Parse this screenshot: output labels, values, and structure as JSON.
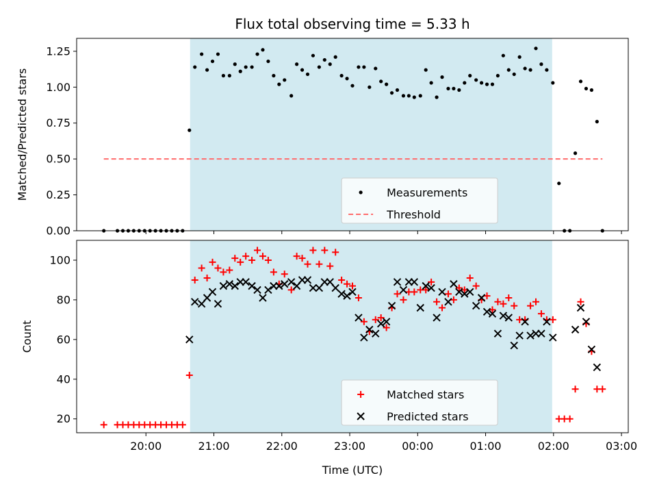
{
  "title": "Flux total observing time = 5.33 h",
  "shading_color": "#add8e6",
  "x_axis": {
    "label": "Time (UTC)",
    "range_hours": [
      18.98,
      27.1
    ],
    "ticks": [
      20,
      21,
      22,
      23,
      24,
      25,
      26,
      27
    ],
    "tick_labels": [
      "20:00",
      "21:00",
      "22:00",
      "23:00",
      "00:00",
      "01:00",
      "02:00",
      "03:00"
    ]
  },
  "chart_data": [
    {
      "type": "scatter",
      "panel": "top",
      "xlabel": "",
      "ylabel": "Matched/Predicted stars",
      "ylim": [
        0,
        1.34
      ],
      "yticks": [
        0,
        0.25,
        0.5,
        0.75,
        1.0,
        1.25
      ],
      "ytick_labels": [
        "0.00",
        "0.25",
        "0.50",
        "0.75",
        "1.00",
        "1.25"
      ],
      "shaded_interval": [
        20.65,
        25.98
      ],
      "legend_position": "lower center",
      "series": [
        {
          "name": "Measurements",
          "color": "#000000",
          "marker": "dot",
          "points": [
            [
              19.38,
              0
            ],
            [
              19.58,
              0
            ],
            [
              19.66,
              0
            ],
            [
              19.74,
              0
            ],
            [
              19.82,
              0
            ],
            [
              19.9,
              0
            ],
            [
              19.98,
              0
            ],
            [
              20.06,
              0
            ],
            [
              20.14,
              0
            ],
            [
              20.22,
              0
            ],
            [
              20.3,
              0
            ],
            [
              20.38,
              0
            ],
            [
              20.46,
              0
            ],
            [
              20.54,
              0
            ],
            [
              20.64,
              0.7
            ],
            [
              20.72,
              1.14
            ],
            [
              20.82,
              1.23
            ],
            [
              20.9,
              1.12
            ],
            [
              20.98,
              1.18
            ],
            [
              21.06,
              1.23
            ],
            [
              21.14,
              1.08
            ],
            [
              21.23,
              1.08
            ],
            [
              21.31,
              1.16
            ],
            [
              21.39,
              1.11
            ],
            [
              21.47,
              1.14
            ],
            [
              21.56,
              1.14
            ],
            [
              21.64,
              1.23
            ],
            [
              21.72,
              1.26
            ],
            [
              21.8,
              1.18
            ],
            [
              21.88,
              1.08
            ],
            [
              21.96,
              1.02
            ],
            [
              22.04,
              1.05
            ],
            [
              22.14,
              0.94
            ],
            [
              22.22,
              1.16
            ],
            [
              22.3,
              1.12
            ],
            [
              22.38,
              1.09
            ],
            [
              22.46,
              1.22
            ],
            [
              22.55,
              1.14
            ],
            [
              22.63,
              1.19
            ],
            [
              22.71,
              1.16
            ],
            [
              22.79,
              1.21
            ],
            [
              22.88,
              1.08
            ],
            [
              22.96,
              1.06
            ],
            [
              23.04,
              1.01
            ],
            [
              23.13,
              1.14
            ],
            [
              23.21,
              1.14
            ],
            [
              23.29,
              1.0
            ],
            [
              23.38,
              1.13
            ],
            [
              23.46,
              1.04
            ],
            [
              23.54,
              1.02
            ],
            [
              23.62,
              0.96
            ],
            [
              23.7,
              0.98
            ],
            [
              23.79,
              0.94
            ],
            [
              23.87,
              0.94
            ],
            [
              23.95,
              0.93
            ],
            [
              24.04,
              0.94
            ],
            [
              24.12,
              1.12
            ],
            [
              24.2,
              1.03
            ],
            [
              24.28,
              0.93
            ],
            [
              24.36,
              1.07
            ],
            [
              24.45,
              0.99
            ],
            [
              24.53,
              0.99
            ],
            [
              24.61,
              0.98
            ],
            [
              24.69,
              1.03
            ],
            [
              24.77,
              1.08
            ],
            [
              24.86,
              1.05
            ],
            [
              24.94,
              1.03
            ],
            [
              25.02,
              1.02
            ],
            [
              25.1,
              1.02
            ],
            [
              25.18,
              1.08
            ],
            [
              25.26,
              1.22
            ],
            [
              25.34,
              1.12
            ],
            [
              25.42,
              1.09
            ],
            [
              25.5,
              1.21
            ],
            [
              25.58,
              1.13
            ],
            [
              25.66,
              1.12
            ],
            [
              25.74,
              1.27
            ],
            [
              25.82,
              1.16
            ],
            [
              25.9,
              1.12
            ],
            [
              25.99,
              1.03
            ],
            [
              26.08,
              0.33
            ],
            [
              26.16,
              0
            ],
            [
              26.24,
              0
            ],
            [
              26.32,
              0.54
            ],
            [
              26.4,
              1.04
            ],
            [
              26.48,
              0.99
            ],
            [
              26.56,
              0.98
            ],
            [
              26.64,
              0.76
            ],
            [
              26.72,
              0
            ]
          ]
        },
        {
          "name": "Threshold",
          "color": "#ff6b6b",
          "style": "dashed",
          "points": [
            [
              19.38,
              0.5
            ],
            [
              26.72,
              0.5
            ]
          ]
        }
      ]
    },
    {
      "type": "scatter",
      "panel": "bottom",
      "xlabel": "Time (UTC)",
      "ylabel": "Count",
      "ylim": [
        13,
        110
      ],
      "yticks": [
        20,
        40,
        60,
        80,
        100
      ],
      "ytick_labels": [
        "20",
        "40",
        "60",
        "80",
        "100"
      ],
      "shaded_interval": [
        20.65,
        25.98
      ],
      "legend_position": "lower center",
      "series": [
        {
          "name": "Matched stars",
          "color": "#ff0000",
          "marker": "plus",
          "points": [
            [
              19.38,
              17
            ],
            [
              19.58,
              17
            ],
            [
              19.66,
              17
            ],
            [
              19.74,
              17
            ],
            [
              19.82,
              17
            ],
            [
              19.9,
              17
            ],
            [
              19.98,
              17
            ],
            [
              20.06,
              17
            ],
            [
              20.14,
              17
            ],
            [
              20.22,
              17
            ],
            [
              20.3,
              17
            ],
            [
              20.38,
              17
            ],
            [
              20.46,
              17
            ],
            [
              20.54,
              17
            ],
            [
              20.64,
              42
            ],
            [
              20.72,
              90
            ],
            [
              20.82,
              96
            ],
            [
              20.9,
              91
            ],
            [
              20.98,
              99
            ],
            [
              21.06,
              96
            ],
            [
              21.14,
              94
            ],
            [
              21.23,
              95
            ],
            [
              21.31,
              101
            ],
            [
              21.39,
              99
            ],
            [
              21.47,
              102
            ],
            [
              21.56,
              100
            ],
            [
              21.64,
              105
            ],
            [
              21.72,
              102
            ],
            [
              21.8,
              100
            ],
            [
              21.88,
              94
            ],
            [
              21.96,
              88
            ],
            [
              22.04,
              93
            ],
            [
              22.14,
              85
            ],
            [
              22.22,
              102
            ],
            [
              22.3,
              101
            ],
            [
              22.38,
              98
            ],
            [
              22.46,
              105
            ],
            [
              22.55,
              98
            ],
            [
              22.63,
              105
            ],
            [
              22.71,
              97
            ],
            [
              22.79,
              104
            ],
            [
              22.88,
              90
            ],
            [
              22.96,
              88
            ],
            [
              23.04,
              87
            ],
            [
              23.13,
              81
            ],
            [
              23.21,
              69
            ],
            [
              23.29,
              64
            ],
            [
              23.38,
              70
            ],
            [
              23.46,
              71
            ],
            [
              23.54,
              66
            ],
            [
              23.62,
              76
            ],
            [
              23.7,
              83
            ],
            [
              23.79,
              80
            ],
            [
              23.87,
              84
            ],
            [
              23.95,
              84
            ],
            [
              24.04,
              85
            ],
            [
              24.12,
              85
            ],
            [
              24.2,
              89
            ],
            [
              24.28,
              79
            ],
            [
              24.36,
              76
            ],
            [
              24.45,
              83
            ],
            [
              24.53,
              80
            ],
            [
              24.61,
              86
            ],
            [
              24.69,
              85
            ],
            [
              24.77,
              91
            ],
            [
              24.86,
              87
            ],
            [
              24.94,
              80
            ],
            [
              25.02,
              82
            ],
            [
              25.1,
              75
            ],
            [
              25.18,
              79
            ],
            [
              25.26,
              78
            ],
            [
              25.34,
              81
            ],
            [
              25.42,
              77
            ],
            [
              25.5,
              70
            ],
            [
              25.58,
              70
            ],
            [
              25.66,
              77
            ],
            [
              25.74,
              79
            ],
            [
              25.82,
              73
            ],
            [
              25.9,
              70
            ],
            [
              25.99,
              70
            ],
            [
              26.08,
              20
            ],
            [
              26.16,
              20
            ],
            [
              26.24,
              20
            ],
            [
              26.32,
              35
            ],
            [
              26.4,
              79
            ],
            [
              26.48,
              68
            ],
            [
              26.56,
              54
            ],
            [
              26.64,
              35
            ],
            [
              26.72,
              35
            ]
          ]
        },
        {
          "name": "Predicted stars",
          "color": "#000000",
          "marker": "x",
          "points": [
            [
              20.64,
              60
            ],
            [
              20.72,
              79
            ],
            [
              20.82,
              78
            ],
            [
              20.9,
              81
            ],
            [
              20.98,
              84
            ],
            [
              21.06,
              78
            ],
            [
              21.14,
              87
            ],
            [
              21.23,
              88
            ],
            [
              21.31,
              87
            ],
            [
              21.39,
              89
            ],
            [
              21.47,
              89
            ],
            [
              21.56,
              87
            ],
            [
              21.64,
              85
            ],
            [
              21.72,
              81
            ],
            [
              21.8,
              85
            ],
            [
              21.88,
              87
            ],
            [
              21.96,
              87
            ],
            [
              22.04,
              88
            ],
            [
              22.14,
              89
            ],
            [
              22.22,
              87
            ],
            [
              22.3,
              90
            ],
            [
              22.38,
              90
            ],
            [
              22.46,
              86
            ],
            [
              22.55,
              86
            ],
            [
              22.63,
              89
            ],
            [
              22.71,
              89
            ],
            [
              22.79,
              86
            ],
            [
              22.88,
              83
            ],
            [
              22.96,
              82
            ],
            [
              23.04,
              84
            ],
            [
              23.13,
              71
            ],
            [
              23.21,
              61
            ],
            [
              23.29,
              65
            ],
            [
              23.38,
              63
            ],
            [
              23.46,
              68
            ],
            [
              23.54,
              69
            ],
            [
              23.62,
              77
            ],
            [
              23.7,
              89
            ],
            [
              23.79,
              85
            ],
            [
              23.87,
              89
            ],
            [
              23.95,
              89
            ],
            [
              24.04,
              76
            ],
            [
              24.12,
              87
            ],
            [
              24.2,
              86
            ],
            [
              24.28,
              71
            ],
            [
              24.36,
              84
            ],
            [
              24.45,
              79
            ],
            [
              24.53,
              88
            ],
            [
              24.61,
              84
            ],
            [
              24.69,
              83
            ],
            [
              24.77,
              84
            ],
            [
              24.86,
              77
            ],
            [
              24.94,
              81
            ],
            [
              25.02,
              74
            ],
            [
              25.1,
              73
            ],
            [
              25.18,
              63
            ],
            [
              25.26,
              72
            ],
            [
              25.34,
              71
            ],
            [
              25.42,
              57
            ],
            [
              25.5,
              62
            ],
            [
              25.58,
              69
            ],
            [
              25.66,
              62
            ],
            [
              25.74,
              63
            ],
            [
              25.82,
              63
            ],
            [
              25.9,
              69
            ],
            [
              25.99,
              61
            ],
            [
              26.32,
              65
            ],
            [
              26.4,
              76
            ],
            [
              26.48,
              69
            ],
            [
              26.56,
              55
            ],
            [
              26.64,
              46
            ]
          ]
        }
      ]
    }
  ]
}
